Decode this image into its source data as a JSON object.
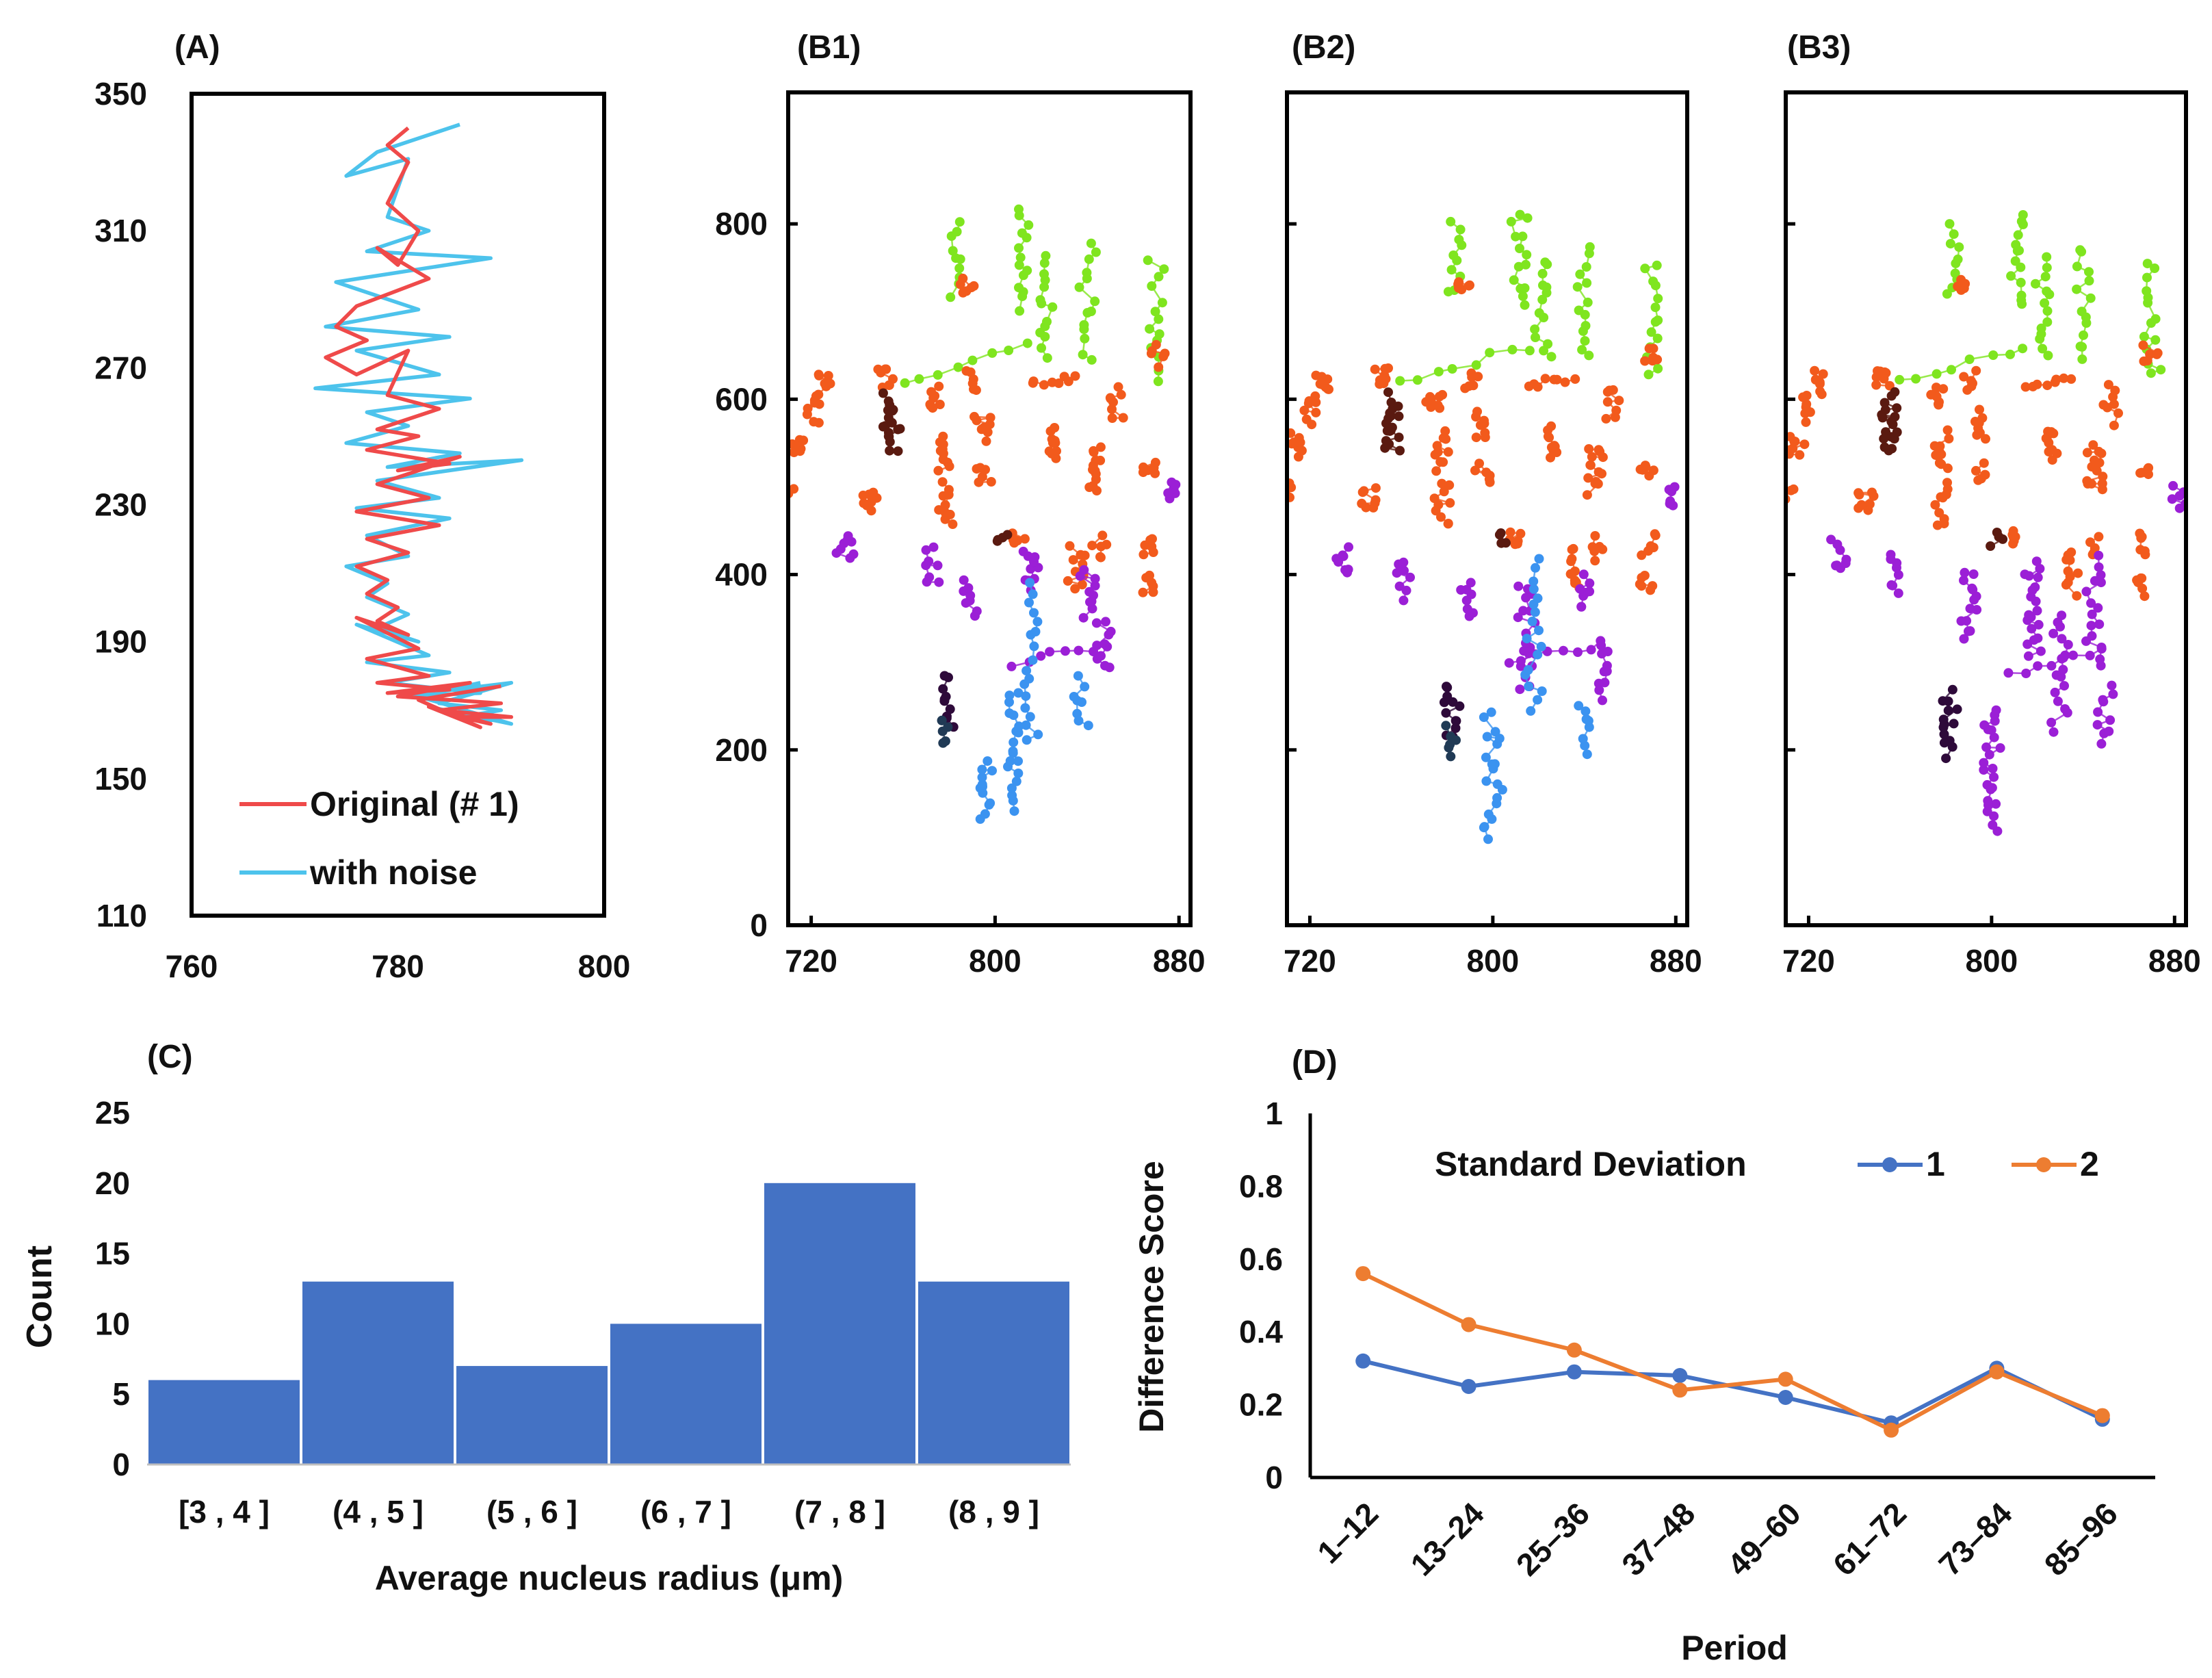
{
  "colors": {
    "axis": "#000000",
    "original": "#ef4a4a",
    "noise": "#4dc3ec",
    "green": "#7fe51f",
    "orange": "#f25a1c",
    "purple": "#9b1fd6",
    "blue": "#3b93f0",
    "darkred": "#5a1a10",
    "darkblue": "#203a55",
    "darkpurple": "#2e0a3a",
    "bar": "#4472c4",
    "sd1": "#4472c4",
    "sd2": "#ed7d31"
  },
  "chart_data": [
    {
      "id": "A",
      "type": "line",
      "panel_label": "(A)",
      "xlim": [
        760,
        800
      ],
      "ylim": [
        110,
        350
      ],
      "xticks": [
        "760",
        "780",
        "800"
      ],
      "yticks": [
        "110",
        "150",
        "190",
        "230",
        "270",
        "310",
        "350"
      ],
      "legend": [
        "Original (# 1)",
        "with noise"
      ],
      "series": [
        {
          "name": "Original (# 1)",
          "x": [
            781,
            779,
            781,
            779,
            782,
            780,
            778,
            783,
            776,
            774,
            777,
            773,
            776,
            781,
            779,
            784,
            778,
            782,
            777,
            785,
            780,
            786,
            778,
            783,
            776,
            784,
            777,
            781,
            776,
            779,
            777,
            780,
            778,
            781,
            776,
            782,
            777,
            783,
            778,
            785,
            779,
            787,
            780,
            790,
            784,
            791,
            786,
            789,
            783,
            788,
            782,
            790
          ],
          "y": [
            340,
            335,
            330,
            318,
            310,
            300,
            305,
            296,
            288,
            282,
            278,
            273,
            268,
            275,
            262,
            258,
            252,
            250,
            246,
            242,
            240,
            244,
            236,
            232,
            228,
            224,
            220,
            216,
            212,
            208,
            204,
            200,
            196,
            192,
            197,
            188,
            185,
            180,
            178,
            176,
            175,
            178,
            174,
            172,
            170,
            168,
            168,
            166,
            171,
            165,
            173,
            177
          ]
        },
        {
          "name": "with noise",
          "x": [
            786,
            778,
            775,
            781,
            779,
            783,
            777,
            789,
            774,
            782,
            773,
            785,
            776,
            784,
            772,
            787,
            777,
            781,
            775,
            786,
            779,
            792,
            778,
            784,
            776,
            785,
            777,
            781,
            775,
            779,
            777,
            781,
            778,
            782,
            776,
            783,
            777,
            785,
            779,
            788,
            780,
            791,
            784,
            790,
            786,
            789,
            783,
            791,
            782,
            788
          ],
          "y": [
            341,
            333,
            326,
            331,
            314,
            310,
            304,
            302,
            295,
            287,
            282,
            279,
            275,
            268,
            264,
            261,
            257,
            253,
            248,
            245,
            241,
            243,
            237,
            232,
            229,
            226,
            221,
            215,
            212,
            207,
            203,
            198,
            194,
            190,
            195,
            186,
            184,
            181,
            178,
            175,
            174,
            178,
            172,
            170,
            168,
            167,
            171,
            166,
            174,
            178
          ]
        }
      ]
    },
    {
      "id": "B1",
      "type": "scatter",
      "panel_label": "(B1)",
      "xlim": [
        710,
        885
      ],
      "ylim": [
        0,
        950
      ],
      "xticks": [
        "720",
        "800",
        "880"
      ],
      "yticks": [
        "0",
        "200",
        "400",
        "600",
        "800"
      ],
      "highlight_groups": "purple-few"
    },
    {
      "id": "B2",
      "type": "scatter",
      "panel_label": "(B2)",
      "xlim": [
        710,
        885
      ],
      "ylim": [
        0,
        950
      ],
      "xticks": [
        "720",
        "800",
        "880"
      ],
      "yticks": [],
      "highlight_groups": "purple-mid"
    },
    {
      "id": "B3",
      "type": "scatter",
      "panel_label": "(B3)",
      "xlim": [
        710,
        885
      ],
      "ylim": [
        0,
        950
      ],
      "xticks": [
        "720",
        "800",
        "880"
      ],
      "yticks": [],
      "highlight_groups": "purple-many"
    },
    {
      "id": "C",
      "type": "bar",
      "panel_label": "(C)",
      "categories": [
        "[3 , 4 ]",
        "(4 , 5 ]",
        "(5 , 6 ]",
        "(6 , 7 ]",
        "(7 , 8 ]",
        "(8 , 9 ]"
      ],
      "values": [
        6,
        13,
        7,
        10,
        20,
        13
      ],
      "xlabel": "Average nucleus radius (μm)",
      "ylabel": "Count",
      "ylim": [
        0,
        25
      ],
      "yticks": [
        "0",
        "5",
        "10",
        "15",
        "20",
        "25"
      ]
    },
    {
      "id": "D",
      "type": "line",
      "panel_label": "(D)",
      "categories": [
        "1–12",
        "13–24",
        "25–36",
        "37–48",
        "49–60",
        "61–72",
        "73–84",
        "85–96"
      ],
      "series": [
        {
          "name": "1",
          "values": [
            0.32,
            0.25,
            0.29,
            0.28,
            0.22,
            0.15,
            0.3,
            0.16
          ]
        },
        {
          "name": "2",
          "values": [
            0.56,
            0.42,
            0.35,
            0.24,
            0.27,
            0.13,
            0.29,
            0.17
          ]
        }
      ],
      "legend_title": "Standard Deviation",
      "xlabel": "Period",
      "ylabel": "Difference Score",
      "ylim": [
        0,
        1
      ],
      "yticks": [
        "0",
        "0.2",
        "0.4",
        "0.6",
        "0.8",
        "1"
      ]
    }
  ]
}
